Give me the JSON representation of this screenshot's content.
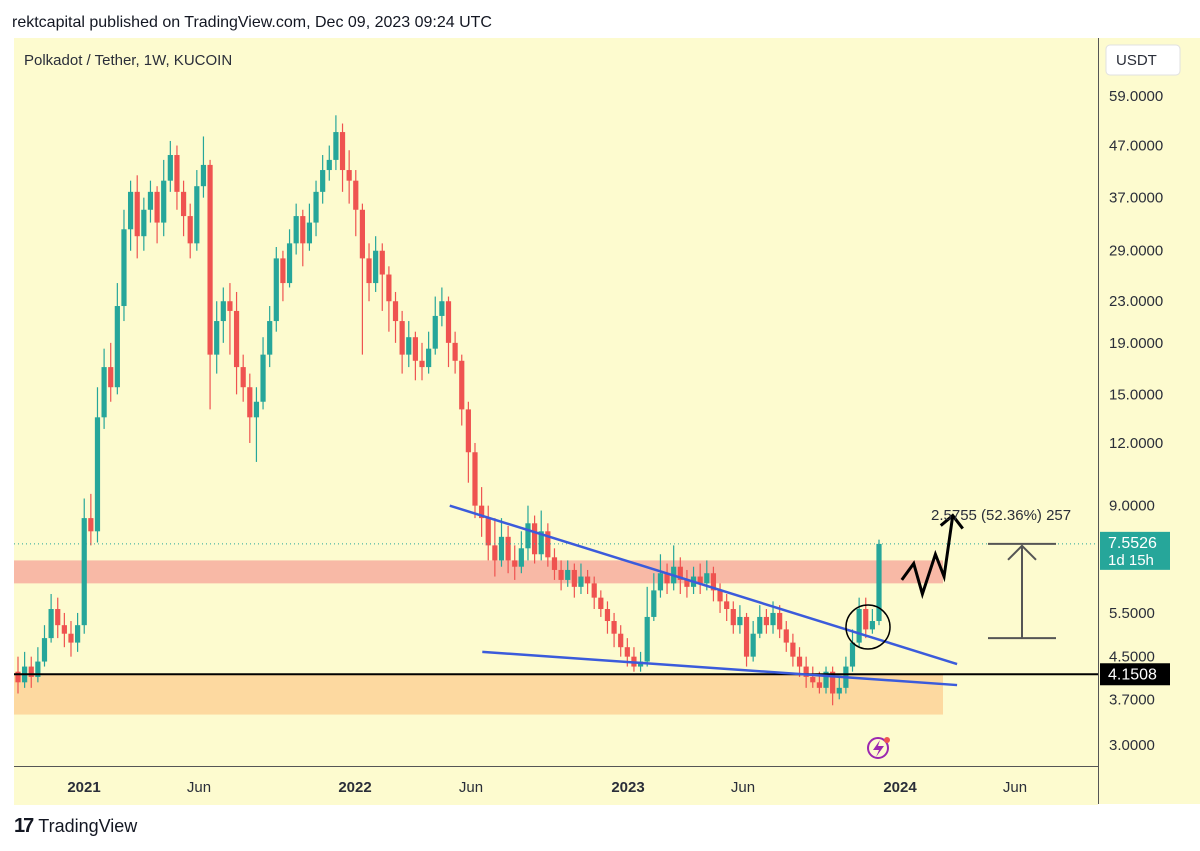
{
  "header": {
    "text": "rektcapital published on TradingView.com, Dec 09, 2023 09:24 UTC"
  },
  "footer": {
    "brand": "TradingView",
    "logo": "tv-logo-icon"
  },
  "colors": {
    "background": "#fdfbcf",
    "up": "#26a69a",
    "down": "#ef5350",
    "trendline": "#3b5bdb",
    "resistance_zone": "#f8b9a6",
    "support_zone": "#fdd9a0",
    "horizontal_line": "#000000",
    "price_badge": "#26a69a",
    "level_badge": "#000000"
  },
  "chart_data": {
    "type": "candlestick",
    "title": "Polkadot / Tether, 1W, KUCOIN",
    "currency": "USDT",
    "y_scale": "log",
    "y_ticks": [
      "59.0000",
      "47.0000",
      "37.0000",
      "29.0000",
      "23.0000",
      "19.0000",
      "15.0000",
      "12.0000",
      "9.0000",
      "5.5000",
      "4.5000",
      "3.7000",
      "3.0000"
    ],
    "x_ticks": [
      {
        "label": "2021",
        "year": true
      },
      {
        "label": "Jun",
        "year": false
      },
      {
        "label": "2022",
        "year": true
      },
      {
        "label": "Jun",
        "year": false
      },
      {
        "label": "2023",
        "year": true
      },
      {
        "label": "Jun",
        "year": false
      },
      {
        "label": "2024",
        "year": true
      },
      {
        "label": "Jun",
        "year": false
      }
    ],
    "current_price": "7.5526",
    "countdown": "1d 15h",
    "level_label": "4.1508",
    "measure_label": "2.5755 (52.36%) 257",
    "resistance_zone": [
      6.3,
      7.0
    ],
    "support_zone": [
      3.45,
      4.15
    ],
    "horizontal_level": 4.1508,
    "candles": [
      [
        4.2,
        4.0,
        4.5,
        3.8
      ],
      [
        4.0,
        4.3,
        4.6,
        3.9
      ],
      [
        4.3,
        4.1,
        4.5,
        3.9
      ],
      [
        4.1,
        4.4,
        4.7,
        4.0
      ],
      [
        4.4,
        4.9,
        5.2,
        4.3
      ],
      [
        4.9,
        5.6,
        6.0,
        4.8
      ],
      [
        5.6,
        5.2,
        5.9,
        4.9
      ],
      [
        5.2,
        5.0,
        5.5,
        4.7
      ],
      [
        5.0,
        4.8,
        5.3,
        4.5
      ],
      [
        4.8,
        5.2,
        5.5,
        4.6
      ],
      [
        5.2,
        8.5,
        9.3,
        5.0
      ],
      [
        8.5,
        8.0,
        9.5,
        7.5
      ],
      [
        8.0,
        13.5,
        15.5,
        7.6
      ],
      [
        13.5,
        17.0,
        18.5,
        12.8
      ],
      [
        17.0,
        15.5,
        19.0,
        14.5
      ],
      [
        15.5,
        22.5,
        25.0,
        15.0
      ],
      [
        22.5,
        32.0,
        35.0,
        21.0
      ],
      [
        32.0,
        38.0,
        40.0,
        29.0
      ],
      [
        38.0,
        31.0,
        41.0,
        28.0
      ],
      [
        31.0,
        35.0,
        37.0,
        29.0
      ],
      [
        35.0,
        38.0,
        40.0,
        33.0
      ],
      [
        38.0,
        33.0,
        39.0,
        30.0
      ],
      [
        33.0,
        40.0,
        44.0,
        31.0
      ],
      [
        40.0,
        45.0,
        48.0,
        38.0
      ],
      [
        45.0,
        38.0,
        47.0,
        35.0
      ],
      [
        38.0,
        34.0,
        40.0,
        31.0
      ],
      [
        34.0,
        30.0,
        36.0,
        28.0
      ],
      [
        30.0,
        39.0,
        42.0,
        29.0
      ],
      [
        39.0,
        43.0,
        49.0,
        37.0
      ],
      [
        43.0,
        18.0,
        44.0,
        14.0
      ],
      [
        18.0,
        21.0,
        23.0,
        16.5
      ],
      [
        21.0,
        23.0,
        24.5,
        19.0
      ],
      [
        23.0,
        22.0,
        25.0,
        18.0
      ],
      [
        22.0,
        17.0,
        24.0,
        15.0
      ],
      [
        17.0,
        15.5,
        18.0,
        14.5
      ],
      [
        15.5,
        13.5,
        16.5,
        12.0
      ],
      [
        13.5,
        14.5,
        15.5,
        11.0
      ],
      [
        14.5,
        18.0,
        19.5,
        14.0
      ],
      [
        18.0,
        21.0,
        22.5,
        17.0
      ],
      [
        21.0,
        28.0,
        29.5,
        20.0
      ],
      [
        28.0,
        25.0,
        29.0,
        23.0
      ],
      [
        25.0,
        30.0,
        32.0,
        24.5
      ],
      [
        30.0,
        34.0,
        36.0,
        28.5
      ],
      [
        34.0,
        30.0,
        35.0,
        27.0
      ],
      [
        30.0,
        33.0,
        36.0,
        29.0
      ],
      [
        33.0,
        38.0,
        40.0,
        31.0
      ],
      [
        38.0,
        42.0,
        45.0,
        36.0
      ],
      [
        42.0,
        44.0,
        47.0,
        40.0
      ],
      [
        44.0,
        50.0,
        54.0,
        42.0
      ],
      [
        50.0,
        42.0,
        52.0,
        38.0
      ],
      [
        42.0,
        40.0,
        46.0,
        36.0
      ],
      [
        40.0,
        35.0,
        42.0,
        31.0
      ],
      [
        35.0,
        28.0,
        36.0,
        18.0
      ],
      [
        28.0,
        25.0,
        30.0,
        23.0
      ],
      [
        25.0,
        29.0,
        31.0,
        24.0
      ],
      [
        29.0,
        26.0,
        30.0,
        22.0
      ],
      [
        26.0,
        23.0,
        27.0,
        20.0
      ],
      [
        23.0,
        21.0,
        24.0,
        19.0
      ],
      [
        21.0,
        18.0,
        22.0,
        16.5
      ],
      [
        18.0,
        19.5,
        21.0,
        17.0
      ],
      [
        19.5,
        17.5,
        20.0,
        16.0
      ],
      [
        17.5,
        17.0,
        19.0,
        16.0
      ],
      [
        17.0,
        18.5,
        20.0,
        16.5
      ],
      [
        18.5,
        21.5,
        23.5,
        18.0
      ],
      [
        21.5,
        23.0,
        24.5,
        20.5
      ],
      [
        23.0,
        19.0,
        23.5,
        17.0
      ],
      [
        19.0,
        17.5,
        20.0,
        16.5
      ],
      [
        17.5,
        14.0,
        18.0,
        13.0
      ],
      [
        14.0,
        11.5,
        14.5,
        10.0
      ],
      [
        11.5,
        9.0,
        12.0,
        8.5
      ],
      [
        9.0,
        8.5,
        9.8,
        7.8
      ],
      [
        8.5,
        7.5,
        9.0,
        7.0
      ],
      [
        7.5,
        7.0,
        8.5,
        6.5
      ],
      [
        7.0,
        7.8,
        8.5,
        6.8
      ],
      [
        7.8,
        7.0,
        8.2,
        6.6
      ],
      [
        7.0,
        6.8,
        7.5,
        6.4
      ],
      [
        6.8,
        7.4,
        8.0,
        6.6
      ],
      [
        7.4,
        8.3,
        9.0,
        7.0
      ],
      [
        8.3,
        7.2,
        8.6,
        6.9
      ],
      [
        7.2,
        8.0,
        8.8,
        7.0
      ],
      [
        8.0,
        7.1,
        8.3,
        6.8
      ],
      [
        7.1,
        6.7,
        7.4,
        6.4
      ],
      [
        6.7,
        6.4,
        7.0,
        6.1
      ],
      [
        6.4,
        6.7,
        7.0,
        6.2
      ],
      [
        6.7,
        6.2,
        6.9,
        5.9
      ],
      [
        6.2,
        6.5,
        6.9,
        6.0
      ],
      [
        6.5,
        6.3,
        6.7,
        6.0
      ],
      [
        6.3,
        5.9,
        6.5,
        5.6
      ],
      [
        5.9,
        5.6,
        6.1,
        5.4
      ],
      [
        5.6,
        5.3,
        5.8,
        5.0
      ],
      [
        5.3,
        5.0,
        5.5,
        4.7
      ],
      [
        5.0,
        4.7,
        5.2,
        4.5
      ],
      [
        4.7,
        4.5,
        4.9,
        4.3
      ],
      [
        4.5,
        4.3,
        4.7,
        4.2
      ],
      [
        4.3,
        4.4,
        4.6,
        4.2
      ],
      [
        4.4,
        5.4,
        6.2,
        4.3
      ],
      [
        5.4,
        6.1,
        6.6,
        5.3
      ],
      [
        6.1,
        6.6,
        7.2,
        5.9
      ],
      [
        6.6,
        6.3,
        6.9,
        6.0
      ],
      [
        6.3,
        6.8,
        7.5,
        6.1
      ],
      [
        6.8,
        6.4,
        7.1,
        6.0
      ],
      [
        6.4,
        6.2,
        6.7,
        5.9
      ],
      [
        6.2,
        6.5,
        6.8,
        6.0
      ],
      [
        6.5,
        6.3,
        6.9,
        6.0
      ],
      [
        6.3,
        6.6,
        7.0,
        6.1
      ],
      [
        6.6,
        6.1,
        6.8,
        5.8
      ],
      [
        6.1,
        5.8,
        6.3,
        5.5
      ],
      [
        5.8,
        5.6,
        6.0,
        5.3
      ],
      [
        5.6,
        5.2,
        5.8,
        5.0
      ],
      [
        5.2,
        5.4,
        5.7,
        5.0
      ],
      [
        5.4,
        4.5,
        5.5,
        4.3
      ],
      [
        4.5,
        5.0,
        5.3,
        4.4
      ],
      [
        5.0,
        5.4,
        5.7,
        4.9
      ],
      [
        5.4,
        5.2,
        5.6,
        5.0
      ],
      [
        5.2,
        5.5,
        5.8,
        5.0
      ],
      [
        5.5,
        5.1,
        5.7,
        4.9
      ],
      [
        5.1,
        4.8,
        5.3,
        4.6
      ],
      [
        4.8,
        4.5,
        5.0,
        4.3
      ],
      [
        4.5,
        4.3,
        4.7,
        4.1
      ],
      [
        4.3,
        4.1,
        4.5,
        3.9
      ],
      [
        4.1,
        4.0,
        4.3,
        3.9
      ],
      [
        4.0,
        3.9,
        4.2,
        3.8
      ],
      [
        3.9,
        4.2,
        4.3,
        3.8
      ],
      [
        4.2,
        3.8,
        4.3,
        3.6
      ],
      [
        3.8,
        3.9,
        4.1,
        3.7
      ],
      [
        3.9,
        4.3,
        4.5,
        3.8
      ],
      [
        4.3,
        4.8,
        5.1,
        4.2
      ],
      [
        4.8,
        5.6,
        5.9,
        4.7
      ],
      [
        5.6,
        5.1,
        5.9,
        4.9
      ],
      [
        5.1,
        5.3,
        5.6,
        5.0
      ],
      [
        5.3,
        7.55,
        7.7,
        5.2
      ]
    ],
    "trendlines": [
      {
        "points": [
          [
            0.402,
            9.0
          ],
          [
            0.87,
            4.35
          ]
        ]
      },
      {
        "points": [
          [
            0.432,
            4.6
          ],
          [
            0.87,
            3.95
          ]
        ]
      }
    ],
    "projection_points": [
      [
        0.819,
        6.4
      ],
      [
        0.83,
        6.9
      ],
      [
        0.838,
        6.0
      ],
      [
        0.85,
        7.2
      ],
      [
        0.858,
        6.5
      ],
      [
        0.866,
        8.6
      ]
    ]
  }
}
